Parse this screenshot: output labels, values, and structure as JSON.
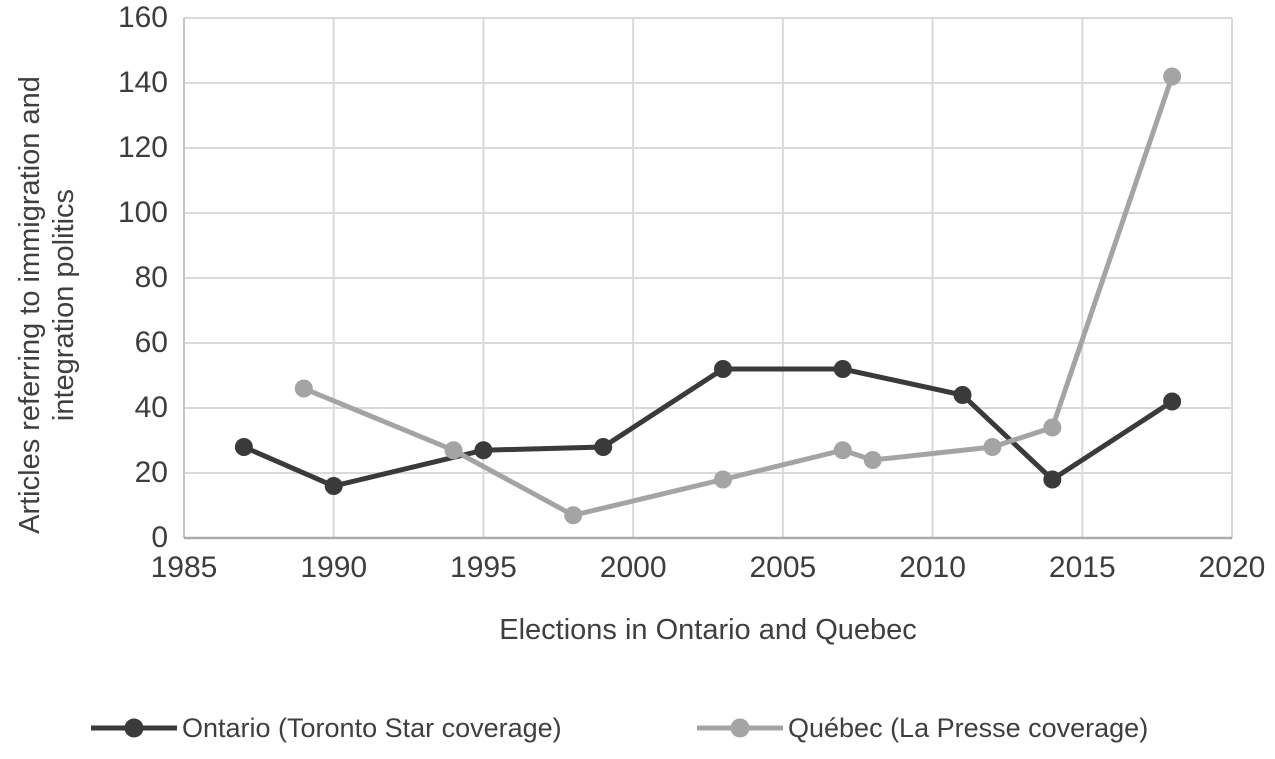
{
  "chart_data": {
    "type": "line",
    "title": "",
    "xlabel": "Elections in Ontario and Quebec",
    "ylabel": "Articles referring to immigration and integration politics",
    "ylabel_lines": [
      "Articles referring to immigration and",
      "integration politics"
    ],
    "xlim": [
      1985,
      2020
    ],
    "ylim": [
      0,
      160
    ],
    "x_ticks": [
      1985,
      1990,
      1995,
      2000,
      2005,
      2010,
      2015,
      2020
    ],
    "y_ticks": [
      0,
      20,
      40,
      60,
      80,
      100,
      120,
      140,
      160
    ],
    "grid": true,
    "legend_position": "bottom",
    "series": [
      {
        "name": "Ontario (Toronto Star coverage)",
        "color": "#3a3a3a",
        "x": [
          1987,
          1990,
          1995,
          1999,
          2003,
          2007,
          2011,
          2014,
          2018
        ],
        "values": [
          28,
          16,
          27,
          28,
          52,
          52,
          44,
          18,
          42
        ]
      },
      {
        "name": "Québec (La Presse coverage)",
        "color": "#a4a4a4",
        "x": [
          1989,
          1994,
          1998,
          2003,
          2007,
          2008,
          2012,
          2014,
          2018
        ],
        "values": [
          46,
          27,
          7,
          18,
          27,
          24,
          28,
          34,
          142
        ]
      }
    ]
  },
  "colors": {
    "background": "#ffffff",
    "gridline": "#d9d9d9",
    "axis_line_bottom": "#ababab",
    "axis_line_left": "#c4c4c4",
    "text": "#3d3d3d"
  }
}
